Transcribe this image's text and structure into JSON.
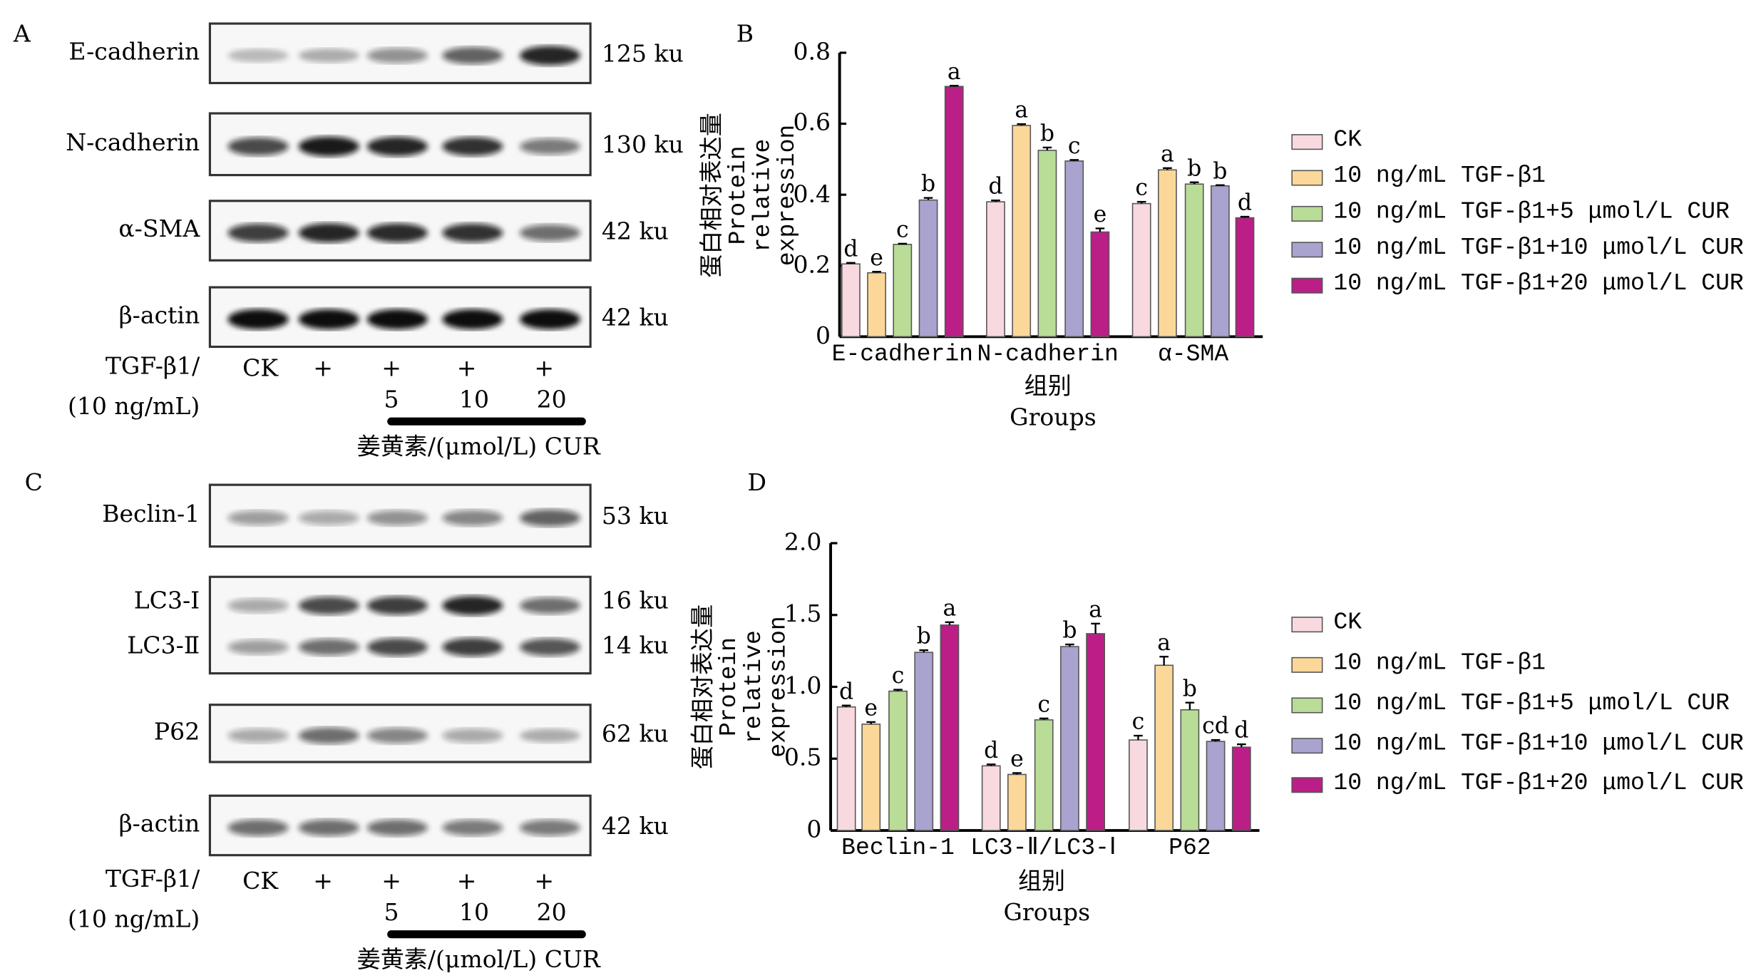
{
  "panel_labels": {
    "a": "A",
    "b": "B",
    "c": "C",
    "d": "D"
  },
  "panelA": {
    "blots": [
      {
        "name": "E-cadherin",
        "size": "125 ku",
        "intensity": [
          0.25,
          0.3,
          0.45,
          0.65,
          0.9
        ]
      },
      {
        "name": "N-cadherin",
        "size": "130 ku",
        "intensity": [
          0.75,
          0.95,
          0.9,
          0.85,
          0.55
        ]
      },
      {
        "name": "α-SMA",
        "size": "42 ku",
        "intensity": [
          0.8,
          0.9,
          0.88,
          0.85,
          0.6
        ]
      },
      {
        "name": "β-actin",
        "size": "42 ku",
        "intensity": [
          1,
          1,
          1,
          1,
          1
        ]
      }
    ],
    "treatment_label_1": "TGF-β1/",
    "treatment_label_2": "(10 ng/mL)",
    "lanes": [
      "CK",
      "+",
      "+",
      "+",
      "+"
    ],
    "doses": [
      "5",
      "10",
      "20"
    ],
    "cur_label": "姜黄素/(μmol/L) CUR"
  },
  "panelC": {
    "blots": [
      {
        "name": "Beclin-1",
        "size": "53 ku",
        "intensity": [
          0.4,
          0.35,
          0.45,
          0.5,
          0.65
        ]
      },
      {
        "name": "LC3-Ⅰ",
        "name2": "LC3-Ⅱ",
        "size": "16 ku",
        "size2": "14 ku",
        "intensity": [
          0.35,
          0.75,
          0.8,
          0.9,
          0.6
        ],
        "intensity2": [
          0.4,
          0.6,
          0.75,
          0.8,
          0.7
        ]
      },
      {
        "name": "P62",
        "size": "62 ku",
        "intensity": [
          0.35,
          0.6,
          0.5,
          0.35,
          0.3
        ]
      },
      {
        "name": "β-actin",
        "size": "42 ku",
        "intensity": [
          0.6,
          0.6,
          0.6,
          0.55,
          0.55
        ]
      }
    ],
    "treatment_label_1": "TGF-β1/",
    "treatment_label_2": "(10 ng/mL)",
    "lanes": [
      "CK",
      "+",
      "+",
      "+",
      "+"
    ],
    "doses": [
      "5",
      "10",
      "20"
    ],
    "cur_label": "姜黄素/(μmol/L) CUR"
  },
  "chart_data": [
    {
      "type": "bar",
      "title": "B",
      "ylabel_cn": "蛋白相对表达量",
      "ylabel_en": "Protein relative expression",
      "xlabel_cn": "组别",
      "xlabel_en": "Groups",
      "ylim": [
        0,
        0.8
      ],
      "yticks": [
        "0",
        "0.2",
        "0.4",
        "0.6",
        "0.8"
      ],
      "ytick_values": [
        0,
        0.2,
        0.4,
        0.6,
        0.8
      ],
      "categories": [
        "E-cadherin",
        "N-cadherin",
        "α-SMA"
      ],
      "series": [
        {
          "name": "CK",
          "color": "#f9d9e0",
          "values": [
            0.205,
            0.38,
            0.375
          ],
          "errors": [
            0.003,
            0.004,
            0.005
          ],
          "letters": [
            "d",
            "d",
            "c"
          ]
        },
        {
          "name": "10 ng/mL TGF-β1",
          "color": "#fbd89a",
          "values": [
            0.18,
            0.595,
            0.47
          ],
          "errors": [
            0.003,
            0.004,
            0.005
          ],
          "letters": [
            "e",
            "a",
            "a"
          ]
        },
        {
          "name": "10 ng/mL TGF-β1+5 μmol/L CUR",
          "color": "#b9dc96",
          "values": [
            0.26,
            0.525,
            0.43
          ],
          "errors": [
            0.002,
            0.008,
            0.005
          ],
          "letters": [
            "c",
            "b",
            "b"
          ]
        },
        {
          "name": "10 ng/mL TGF-β1+10 μmol/L CUR",
          "color": "#a9a3d0",
          "values": [
            0.385,
            0.495,
            0.425
          ],
          "errors": [
            0.006,
            0.003,
            0.002
          ],
          "letters": [
            "b",
            "c",
            "b"
          ]
        },
        {
          "name": "10 ng/mL TGF-β1+20 μmol/L CUR",
          "color": "#bb1e87",
          "values": [
            0.705,
            0.295,
            0.335
          ],
          "errors": [
            0.002,
            0.01,
            0.003
          ],
          "letters": [
            "a",
            "e",
            "d"
          ]
        }
      ],
      "legend": "right"
    },
    {
      "type": "bar",
      "title": "D",
      "ylabel_cn": "蛋白相对表达量",
      "ylabel_en": "Protein relative expression",
      "xlabel_cn": "组别",
      "xlabel_en": "Groups",
      "ylim": [
        0,
        2.0
      ],
      "yticks": [
        "0",
        "0.5",
        "1.0",
        "1.5",
        "2.0"
      ],
      "ytick_values": [
        0,
        0.5,
        1.0,
        1.5,
        2.0
      ],
      "categories": [
        "Beclin-1",
        "LC3-Ⅱ/LC3-Ⅰ",
        "P62"
      ],
      "series": [
        {
          "name": "CK",
          "color": "#f9d9e0",
          "values": [
            0.86,
            0.45,
            0.63
          ],
          "errors": [
            0.01,
            0.01,
            0.03
          ],
          "letters": [
            "d",
            "d",
            "c"
          ]
        },
        {
          "name": "10 ng/mL TGF-β1",
          "color": "#fbd89a",
          "values": [
            0.74,
            0.39,
            1.15
          ],
          "errors": [
            0.015,
            0.01,
            0.06
          ],
          "letters": [
            "e",
            "e",
            "a"
          ]
        },
        {
          "name": "10 ng/mL TGF-β1+5 μmol/L CUR",
          "color": "#b9dc96",
          "values": [
            0.97,
            0.77,
            0.84
          ],
          "errors": [
            0.01,
            0.01,
            0.05
          ],
          "letters": [
            "c",
            "c",
            "b"
          ]
        },
        {
          "name": "10 ng/mL TGF-β1+10 μmol/L CUR",
          "color": "#a9a3d0",
          "values": [
            1.24,
            1.28,
            0.62
          ],
          "errors": [
            0.015,
            0.015,
            0.01
          ],
          "letters": [
            "b",
            "b",
            "cd"
          ]
        },
        {
          "name": "10 ng/mL TGF-β1+20 μmol/L CUR",
          "color": "#bb1e87",
          "values": [
            1.43,
            1.37,
            0.58
          ],
          "errors": [
            0.02,
            0.07,
            0.02
          ],
          "letters": [
            "a",
            "a",
            "d"
          ]
        }
      ],
      "legend": "right"
    }
  ]
}
